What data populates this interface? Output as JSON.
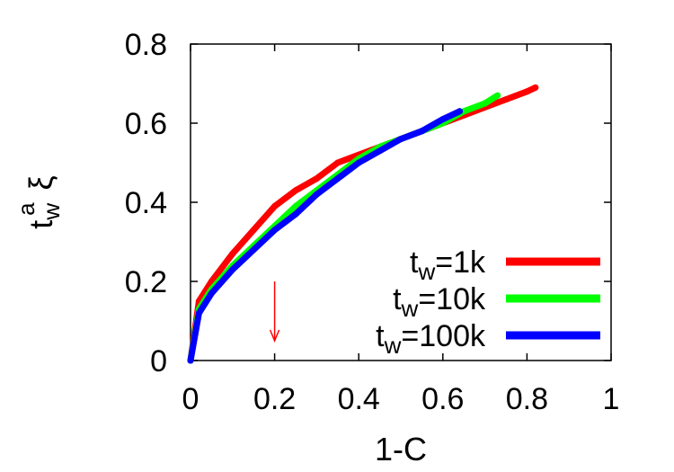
{
  "chart_data": {
    "type": "line",
    "xlabel": "1-C",
    "ylabel": {
      "base": "t",
      "sub": "w",
      "sup": "a",
      "symbol": "ξ"
    },
    "xlim": [
      0,
      1
    ],
    "ylim": [
      0,
      0.8
    ],
    "xticks": [
      "0",
      "0.2",
      "0.4",
      "0.6",
      "0.8",
      "1"
    ],
    "yticks": [
      "0",
      "0.2",
      "0.4",
      "0.6",
      "0.8"
    ],
    "grid": false,
    "legend_position": "bottom-right",
    "series": [
      {
        "name": {
          "base": "t",
          "sub": "w",
          "rest": "=1k"
        },
        "color": "#ff0000",
        "x": [
          0.0,
          0.02,
          0.05,
          0.1,
          0.15,
          0.2,
          0.25,
          0.3,
          0.35,
          0.4,
          0.45,
          0.5,
          0.55,
          0.6,
          0.65,
          0.7,
          0.75,
          0.8,
          0.82
        ],
        "y": [
          0.0,
          0.15,
          0.2,
          0.27,
          0.33,
          0.39,
          0.43,
          0.46,
          0.5,
          0.52,
          0.54,
          0.56,
          0.58,
          0.6,
          0.62,
          0.64,
          0.66,
          0.68,
          0.69
        ]
      },
      {
        "name": {
          "base": "t",
          "sub": "w",
          "rest": "=10k"
        },
        "color": "#00ff00",
        "x": [
          0.0,
          0.02,
          0.05,
          0.1,
          0.15,
          0.2,
          0.25,
          0.3,
          0.35,
          0.4,
          0.45,
          0.5,
          0.55,
          0.6,
          0.65,
          0.7,
          0.73
        ],
        "y": [
          0.0,
          0.13,
          0.18,
          0.24,
          0.29,
          0.34,
          0.39,
          0.43,
          0.47,
          0.51,
          0.54,
          0.56,
          0.58,
          0.6,
          0.63,
          0.65,
          0.67
        ]
      },
      {
        "name": {
          "base": "t",
          "sub": "w",
          "rest": "=100k"
        },
        "color": "#0000ff",
        "x": [
          0.0,
          0.02,
          0.05,
          0.1,
          0.15,
          0.2,
          0.25,
          0.3,
          0.35,
          0.4,
          0.45,
          0.5,
          0.55,
          0.6,
          0.64
        ],
        "y": [
          0.0,
          0.12,
          0.17,
          0.23,
          0.28,
          0.33,
          0.37,
          0.42,
          0.46,
          0.5,
          0.53,
          0.56,
          0.58,
          0.61,
          0.63
        ]
      }
    ],
    "annotations": [
      {
        "type": "arrow",
        "color": "#ff0000",
        "x": 0.2,
        "y_from": 0.2,
        "y_to": 0.05
      }
    ]
  }
}
